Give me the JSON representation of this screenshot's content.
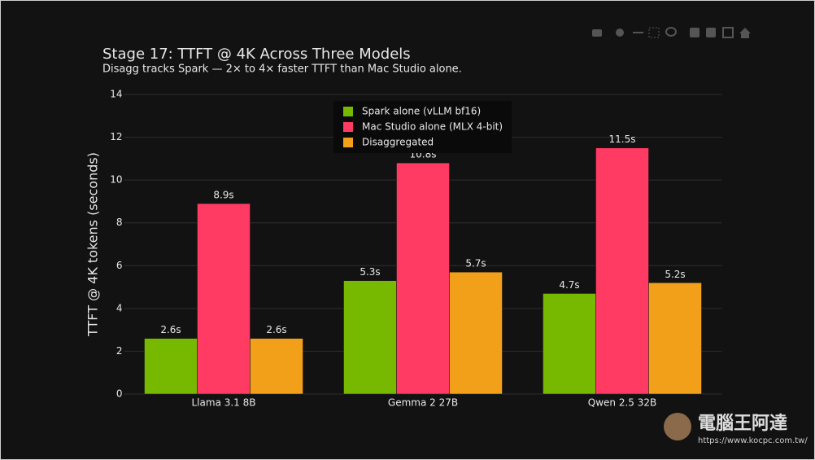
{
  "chart_data": {
    "type": "bar",
    "title": "Stage 17: TTFT @ 4K Across Three Models",
    "subtitle": "Disagg tracks Spark — 2× to 4× faster TTFT than Mac Studio alone.",
    "y_label": "TTFT @ 4K tokens (seconds)",
    "categories": [
      "Llama 3.1 8B",
      "Gemma 2 27B",
      "Qwen 2.5 32B"
    ],
    "series": [
      {
        "name": "Spark alone (vLLM bf16)",
        "color": "#76b900",
        "values": [
          2.6,
          5.3,
          4.7
        ],
        "value_labels": [
          "2.6s",
          "5.3s",
          "4.7s"
        ]
      },
      {
        "name": "Mac Studio alone (MLX 4-bit)",
        "color": "#ff3b63",
        "values": [
          8.9,
          10.8,
          11.5
        ],
        "value_labels": [
          "8.9s",
          "10.8s",
          "11.5s"
        ]
      },
      {
        "name": "Disaggregated",
        "color": "#f2a01a",
        "values": [
          2.6,
          5.7,
          5.2
        ],
        "value_labels": [
          "2.6s",
          "5.7s",
          "5.2s"
        ]
      }
    ],
    "ylim": [
      0,
      14
    ],
    "yticks": [
      0,
      2,
      4,
      6,
      8,
      10,
      12,
      14
    ],
    "grid": true,
    "legend": "top-center"
  },
  "watermark": {
    "name": "電腦王阿達",
    "url": "https://www.kocpc.com.tw/"
  }
}
